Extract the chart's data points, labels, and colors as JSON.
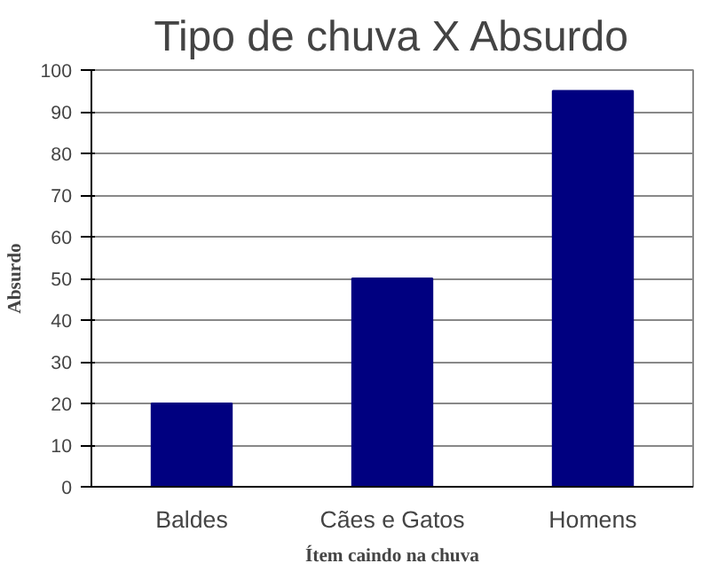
{
  "chart_data": {
    "type": "bar",
    "title": "Tipo de chuva X Absurdo",
    "xlabel": "Ítem caindo na chuva",
    "ylabel": "Absurdo",
    "categories": [
      "Baldes",
      "Cães e Gatos",
      "Homens"
    ],
    "values": [
      20,
      50,
      95
    ],
    "color": "#000080",
    "ylim": [
      0,
      100
    ],
    "yticks": [
      0,
      10,
      20,
      30,
      40,
      50,
      60,
      70,
      80,
      90,
      100
    ],
    "grid": "y"
  }
}
